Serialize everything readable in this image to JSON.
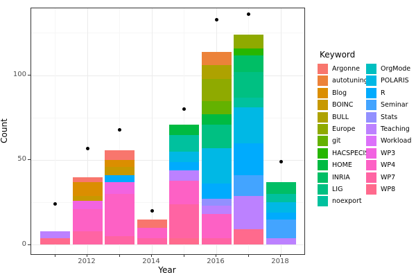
{
  "figure": {
    "background": "#ffffff",
    "panel_border_color": "#333333",
    "gridline_major_color": "#ebebeb",
    "gridline_minor_color": "#f6f6f6",
    "point_color": "#000000",
    "tick_color": "#333333",
    "tick_label_color": "#4d4d4d"
  },
  "axes": {
    "x_title": "Year",
    "y_title": "Count",
    "y_tick_labels": [
      "0",
      "50",
      "100"
    ],
    "y_tick_values": [
      0,
      50,
      100
    ],
    "y_minor_values": [
      25,
      75,
      125
    ],
    "x_tick_labels": [
      "2012",
      "2014",
      "2016",
      "2018"
    ],
    "x_tick_label_years": [
      2012,
      2014,
      2016,
      2018
    ],
    "x_all_years": [
      2011,
      2012,
      2013,
      2014,
      2015,
      2016,
      2017,
      2018
    ]
  },
  "legend": {
    "title": "Keyword",
    "columns": [
      [
        "Argonne",
        "autotuning",
        "Blog",
        "BOINC",
        "BULL",
        "Europe",
        "git",
        "HACSPECIS",
        "HOME",
        "INRIA",
        "LIG",
        "noexport"
      ],
      [
        "OrgMode",
        "POLARIS",
        "R",
        "Seminar",
        "Stats",
        "Teaching",
        "Workload",
        "WP3",
        "WP4",
        "WP7",
        "WP8"
      ]
    ]
  },
  "chart_data": {
    "type": "bar",
    "stacked": true,
    "title": "",
    "xlabel": "Year",
    "ylabel": "Count",
    "ylim": [
      -5.5,
      139.7
    ],
    "grid": true,
    "legend_position": "right",
    "palette": {
      "Argonne": "#F8766D",
      "autotuning": "#EC8239",
      "Blog": "#DB8E00",
      "BOINC": "#C79800",
      "BULL": "#AEA200",
      "Europe": "#8FAA00",
      "git": "#64B200",
      "HACSPECIS": "#27B600",
      "HOME": "#00BA42",
      "INRIA": "#00BE65",
      "LIG": "#00C082",
      "noexport": "#00C19E",
      "OrgMode": "#00BFC0",
      "POLARIS": "#00B8E5",
      "R": "#00ABFD",
      "Seminar": "#43A4FF",
      "Stats": "#9290FF",
      "Teaching": "#BC81FF",
      "Workload": "#DC71FA",
      "WP3": "#F263E1",
      "WP4": "#FD61C5",
      "WP7": "#FF64A3",
      "WP8": "#FF6A8D"
    },
    "bars": [
      {
        "year": 2011,
        "total": 8,
        "segments_bottom_to_top": [
          {
            "keyword": "WP8",
            "value": 4
          },
          {
            "keyword": "Teaching",
            "value": 4
          }
        ]
      },
      {
        "year": 2012,
        "total": 40,
        "segments_bottom_to_top": [
          {
            "keyword": "WP7",
            "value": 8
          },
          {
            "keyword": "WP4",
            "value": 13
          },
          {
            "keyword": "WP3",
            "value": 5
          },
          {
            "keyword": "BOINC",
            "value": 3
          },
          {
            "keyword": "Blog",
            "value": 8
          },
          {
            "keyword": "Argonne",
            "value": 3
          }
        ]
      },
      {
        "year": 2013,
        "total": 56,
        "segments_bottom_to_top": [
          {
            "keyword": "WP7",
            "value": 5
          },
          {
            "keyword": "WP4",
            "value": 25
          },
          {
            "keyword": "WP3",
            "value": 7
          },
          {
            "keyword": "R",
            "value": 4
          },
          {
            "keyword": "BOINC",
            "value": 5
          },
          {
            "keyword": "Blog",
            "value": 4
          },
          {
            "keyword": "Argonne",
            "value": 6
          }
        ]
      },
      {
        "year": 2014,
        "total": 15,
        "segments_bottom_to_top": [
          {
            "keyword": "WP7",
            "value": 4
          },
          {
            "keyword": "WP4",
            "value": 6
          },
          {
            "keyword": "Argonne",
            "value": 5
          }
        ]
      },
      {
        "year": 2015,
        "total": 71,
        "segments_bottom_to_top": [
          {
            "keyword": "WP8",
            "value": 4
          },
          {
            "keyword": "WP7",
            "value": 20
          },
          {
            "keyword": "WP4",
            "value": 14
          },
          {
            "keyword": "Teaching",
            "value": 6
          },
          {
            "keyword": "R",
            "value": 5
          },
          {
            "keyword": "POLARIS",
            "value": 6
          },
          {
            "keyword": "noexport",
            "value": 10
          },
          {
            "keyword": "HOME",
            "value": 6
          }
        ]
      },
      {
        "year": 2016,
        "total": 114,
        "segments_bottom_to_top": [
          {
            "keyword": "WP7",
            "value": 4
          },
          {
            "keyword": "WP4",
            "value": 14
          },
          {
            "keyword": "Teaching",
            "value": 5
          },
          {
            "keyword": "Stats",
            "value": 4
          },
          {
            "keyword": "R",
            "value": 9
          },
          {
            "keyword": "POLARIS",
            "value": 21
          },
          {
            "keyword": "LIG",
            "value": 14
          },
          {
            "keyword": "HOME",
            "value": 6
          },
          {
            "keyword": "git",
            "value": 8
          },
          {
            "keyword": "Europe",
            "value": 13
          },
          {
            "keyword": "BULL",
            "value": 8
          },
          {
            "keyword": "autotuning",
            "value": 8
          }
        ]
      },
      {
        "year": 2017,
        "total": 124,
        "segments_bottom_to_top": [
          {
            "keyword": "WP8",
            "value": 9
          },
          {
            "keyword": "Teaching",
            "value": 20
          },
          {
            "keyword": "Seminar",
            "value": 12
          },
          {
            "keyword": "R",
            "value": 19
          },
          {
            "keyword": "POLARIS",
            "value": 21
          },
          {
            "keyword": "noexport",
            "value": 6
          },
          {
            "keyword": "LIG",
            "value": 15
          },
          {
            "keyword": "INRIA",
            "value": 10
          },
          {
            "keyword": "HACSPECIS",
            "value": 4
          },
          {
            "keyword": "Europe",
            "value": 8
          }
        ]
      },
      {
        "year": 2018,
        "total": 37,
        "segments_bottom_to_top": [
          {
            "keyword": "Teaching",
            "value": 4
          },
          {
            "keyword": "Seminar",
            "value": 11
          },
          {
            "keyword": "R",
            "value": 4
          },
          {
            "keyword": "POLARIS",
            "value": 6
          },
          {
            "keyword": "noexport",
            "value": 5
          },
          {
            "keyword": "INRIA",
            "value": 7
          }
        ]
      }
    ],
    "points": [
      {
        "year": 2011,
        "value": 24
      },
      {
        "year": 2012,
        "value": 57
      },
      {
        "year": 2013,
        "value": 68
      },
      {
        "year": 2014,
        "value": 20
      },
      {
        "year": 2015,
        "value": 80
      },
      {
        "year": 2016,
        "value": 133
      },
      {
        "year": 2017,
        "value": 136
      },
      {
        "year": 2018,
        "value": 49
      }
    ]
  }
}
